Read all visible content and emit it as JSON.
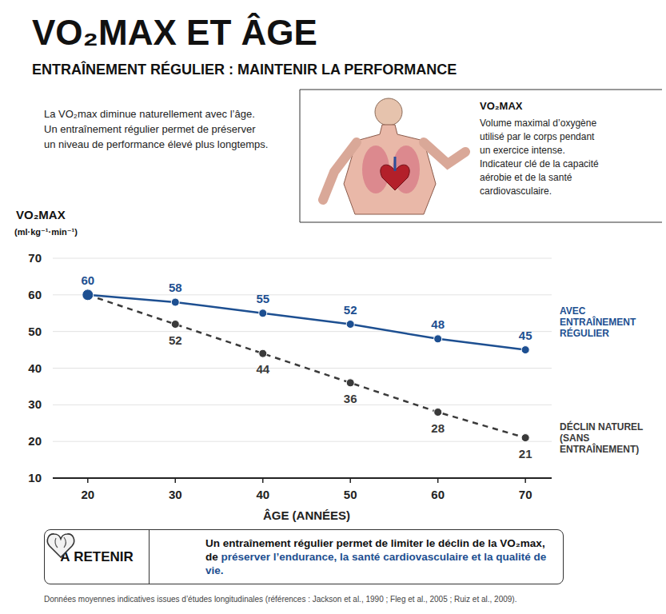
{
  "chart_data": {
    "type": "line",
    "title": "VO₂MAX ET ÂGE",
    "subtitle": "ENTRAÎNEMENT RÉGULIER : MAINTENIR LA PERFORMANCE",
    "ylabel": "VO₂MAX",
    "ylabel_units": "(ml·kg⁻¹·min⁻¹)",
    "xlabel": "ÂGE (ANNÉES)",
    "x": [
      20,
      30,
      40,
      50,
      60,
      70
    ],
    "xlim": [
      16,
      73
    ],
    "xticks": [
      20,
      30,
      40,
      50,
      60,
      70
    ],
    "ylim": [
      10,
      70
    ],
    "yticks": [
      10,
      20,
      30,
      40,
      50,
      60,
      70
    ],
    "grid": true,
    "legend": "right",
    "data_labels": true,
    "series": [
      {
        "name": "AVEC ENTRAÎNEMENT RÉGULIER",
        "color": "#1d4f91",
        "marker": "circle",
        "line_style": "solid",
        "values": [
          60,
          58,
          55,
          52,
          48,
          45
        ]
      },
      {
        "name": "DÉCLIN NATUREL (SANS ENTRAÎNEMENT)",
        "color": "#3a3a3a",
        "marker": "circle",
        "line_style": "dashed",
        "values": [
          60,
          52,
          44,
          36,
          28,
          21
        ],
        "value_labels": [
          null,
          "52",
          "44",
          "36",
          "28",
          "21"
        ]
      }
    ]
  },
  "intro": {
    "lines": [
      "La VO₂max diminue naturellement avec l’âge.",
      "Un entraînement régulier permet de préserver",
      "un niveau de performance élevé plus longtemps."
    ]
  },
  "definition": {
    "title": "VO₂MAX",
    "lines": [
      "Volume maximal d’oxygène",
      "utilisé par le corps pendant",
      "un exercice intense.",
      "Indicateur clé de la capacité",
      "aérobie et de la santé",
      "cardiovasculaire."
    ]
  },
  "takeaway": {
    "label": "À RETENIR",
    "lines": [
      "Un entraînement régulier permet de limiter le déclin de la VO₂max,",
      "de"
    ],
    "highlight": "préserver l’endurance, la santé cardiovasculaire et la qualité de vie."
  },
  "source": "Données moyennes indicatives issues d’études longitudinales (références : Jackson et al., 1990 ; Fleg et al., 2005 ; Ruiz et al., 2009)."
}
